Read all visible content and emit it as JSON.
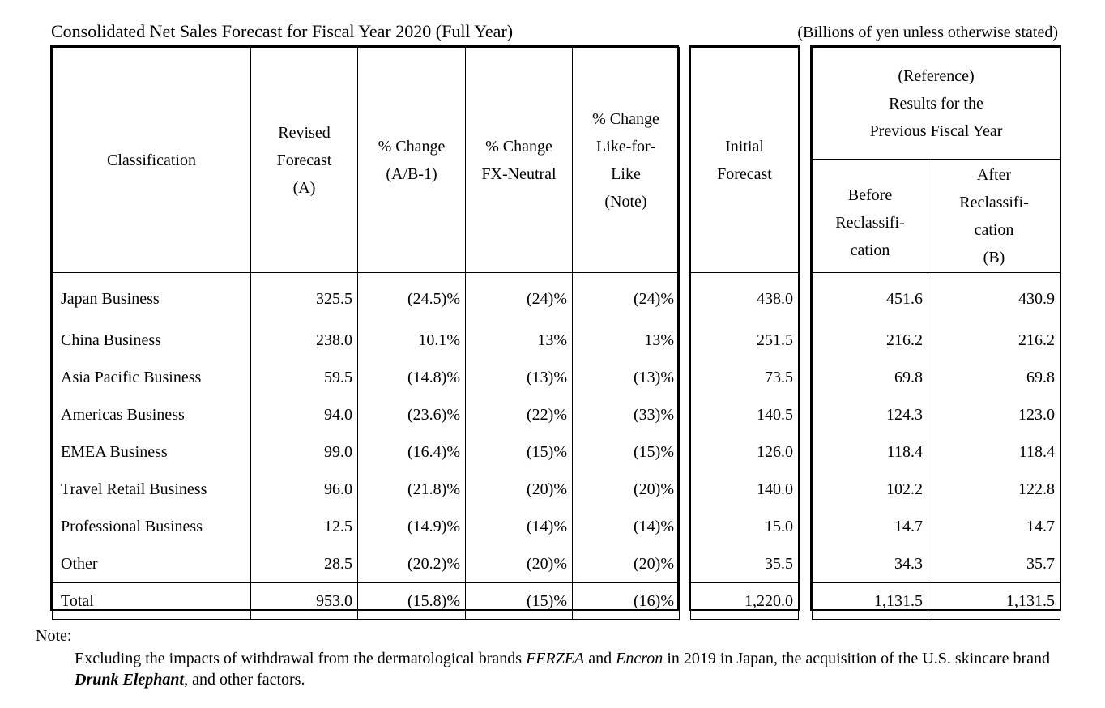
{
  "title": "Consolidated Net Sales Forecast for Fiscal Year 2020 (Full Year)",
  "units": "(Billions of yen unless otherwise stated)",
  "headers": {
    "classification": "Classification",
    "revised": [
      "Revised",
      "Forecast",
      "(A)"
    ],
    "pct_change": [
      "% Change",
      "(A/B-1)"
    ],
    "fx_neutral": [
      "% Change",
      "FX-Neutral"
    ],
    "like_for_like": [
      "% Change",
      "Like-for-",
      "Like",
      "(Note)"
    ],
    "initial": [
      "Initial",
      "Forecast"
    ],
    "reference": [
      "(Reference)",
      "Results for the",
      "Previous Fiscal Year"
    ],
    "before": [
      "Before",
      "Reclassifi-",
      "cation"
    ],
    "after": [
      "After",
      "Reclassifi-",
      "cation",
      "(B)"
    ]
  },
  "rows": [
    {
      "name": "Japan Business",
      "revised": "325.5",
      "pct": "(24.5)%",
      "fx": "(24)%",
      "lfl": "(24)%",
      "initial": "438.0",
      "before": "451.6",
      "after": "430.9"
    },
    {
      "name": "China Business",
      "revised": "238.0",
      "pct": "10.1%",
      "fx": "13%",
      "lfl": "13%",
      "initial": "251.5",
      "before": "216.2",
      "after": "216.2"
    },
    {
      "name": "Asia Pacific Business",
      "revised": "59.5",
      "pct": "(14.8)%",
      "fx": "(13)%",
      "lfl": "(13)%",
      "initial": "73.5",
      "before": "69.8",
      "after": "69.8"
    },
    {
      "name": "Americas Business",
      "revised": "94.0",
      "pct": "(23.6)%",
      "fx": "(22)%",
      "lfl": "(33)%",
      "initial": "140.5",
      "before": "124.3",
      "after": "123.0"
    },
    {
      "name": "EMEA Business",
      "revised": "99.0",
      "pct": "(16.4)%",
      "fx": "(15)%",
      "lfl": "(15)%",
      "initial": "126.0",
      "before": "118.4",
      "after": "118.4"
    },
    {
      "name": "Travel Retail Business",
      "revised": "96.0",
      "pct": "(21.8)%",
      "fx": "(20)%",
      "lfl": "(20)%",
      "initial": "140.0",
      "before": "102.2",
      "after": "122.8"
    },
    {
      "name": "Professional Business",
      "revised": "12.5",
      "pct": "(14.9)%",
      "fx": "(14)%",
      "lfl": "(14)%",
      "initial": "15.0",
      "before": "14.7",
      "after": "14.7"
    },
    {
      "name": "Other",
      "revised": "28.5",
      "pct": "(20.2)%",
      "fx": "(20)%",
      "lfl": "(20)%",
      "initial": "35.5",
      "before": "34.3",
      "after": "35.7"
    }
  ],
  "total": {
    "name": "Total",
    "revised": "953.0",
    "pct": "(15.8)%",
    "fx": "(15)%",
    "lfl": "(16)%",
    "initial": "1,220.0",
    "before": "1,131.5",
    "after": "1,131.5"
  },
  "note": {
    "heading": "Note:",
    "text_1": "Excluding the impacts of withdrawal from the dermatological brands ",
    "brand_1": "FERZEA",
    "text_2": " and ",
    "brand_2": "Encron",
    "text_3": " in 2019 in Japan, the acquisition of the U.S. skincare brand ",
    "brand_3": "Drunk Elephant",
    "text_4": ", and other factors."
  }
}
